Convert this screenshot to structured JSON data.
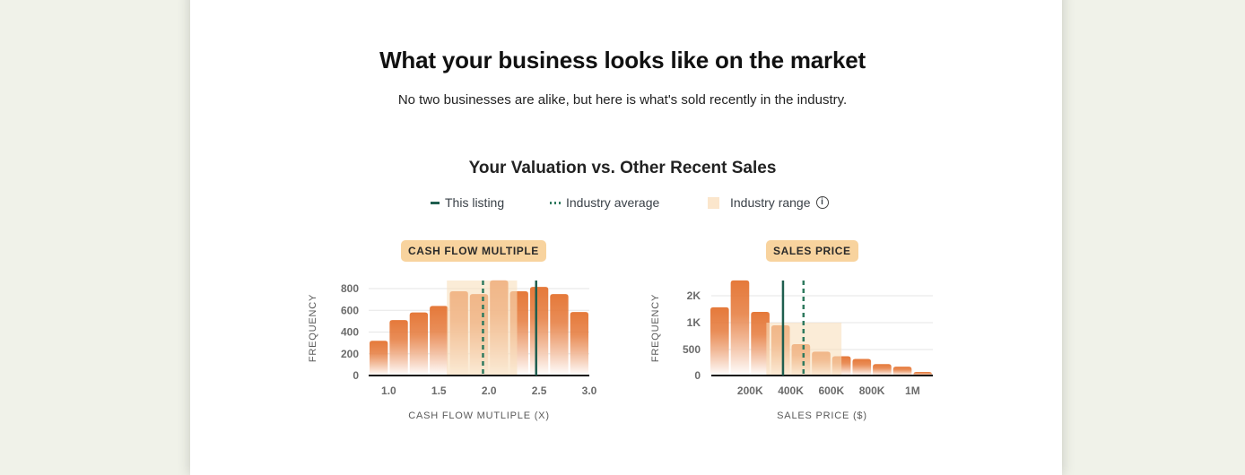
{
  "header": {
    "title": "What your business looks like on the market",
    "subtitle": "No two businesses are alike, but here is what's sold recently in the industry."
  },
  "section_title": "Your Valuation vs. Other Recent Sales",
  "legend": {
    "listing": "This listing",
    "average": "Industry average",
    "range": "Industry range",
    "info_icon": "info-icon"
  },
  "colors": {
    "bar_top": "#e5793a",
    "bar_bottom": "#ffffff",
    "range": "#f9dfbd",
    "listing": "#1f5e4f",
    "average": "#2f7a5f",
    "pill": "#f8d39e",
    "background": "#f0f2e9"
  },
  "chart_data": [
    {
      "type": "bar",
      "title": "CASH FLOW MULTIPLE",
      "xlabel": "CASH FLOW MUTLIPLE (X)",
      "ylabel": "FREQUENCY",
      "bin_start": 0.8,
      "bin_width": 0.2,
      "values": [
        320,
        510,
        580,
        640,
        775,
        750,
        875,
        775,
        815,
        750,
        585
      ],
      "xlim": [
        0.8,
        3.0
      ],
      "ylim": [
        0,
        800
      ],
      "xticks": [
        {
          "v": 1.0,
          "label": "1.0"
        },
        {
          "v": 1.5,
          "label": "1.5"
        },
        {
          "v": 2.0,
          "label": "2.0"
        },
        {
          "v": 2.5,
          "label": "2.5"
        },
        {
          "v": 3.0,
          "label": "3.0"
        }
      ],
      "yticks": [
        {
          "v": 0,
          "label": "0"
        },
        {
          "v": 200,
          "label": "200"
        },
        {
          "v": 400,
          "label": "400"
        },
        {
          "v": 600,
          "label": "600"
        },
        {
          "v": 800,
          "label": "800"
        }
      ],
      "industry_range": [
        1.58,
        2.28
      ],
      "industry_average": 1.94,
      "this_listing": 2.47,
      "grid": true
    },
    {
      "type": "bar",
      "title": "SALES PRICE",
      "xlabel": "SALES PRICE ($)",
      "ylabel": "FREQUENCY",
      "bin_start": 0,
      "bin_width": 100000,
      "values": [
        1570,
        2570,
        1400,
        950,
        600,
        460,
        370,
        320,
        220,
        170,
        70
      ],
      "xlim": [
        0,
        1100000
      ],
      "ylim": [
        0,
        2000
      ],
      "xticks": [
        {
          "v": 200000,
          "label": "200K"
        },
        {
          "v": 400000,
          "label": "400K"
        },
        {
          "v": 600000,
          "label": "600K"
        },
        {
          "v": 800000,
          "label": "800K"
        },
        {
          "v": 1000000,
          "label": "1M"
        }
      ],
      "yticks": [
        {
          "v": 0,
          "label": "0"
        },
        {
          "v": 500,
          "label": "500"
        },
        {
          "v": 1000,
          "label": "1K"
        },
        {
          "v": 2000,
          "label": "2K"
        }
      ],
      "y_scale": "non-linear (equally spaced ticks)",
      "industry_range": [
        280000,
        650000
      ],
      "industry_range_height": 1000,
      "industry_average": 463000,
      "this_listing": 362000,
      "grid": true
    }
  ]
}
